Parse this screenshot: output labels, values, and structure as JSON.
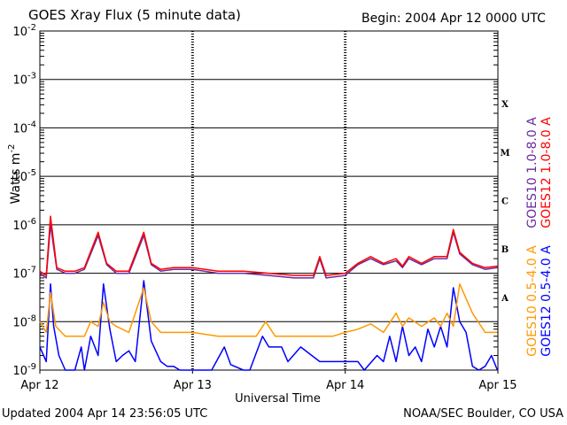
{
  "header": {
    "title": "GOES Xray Flux (5 minute data)",
    "begin": "Begin:  2004 Apr 12 0000 UTC"
  },
  "footer": {
    "updated": "Updated 2004 Apr 14 23:56:05 UTC",
    "source": "NOAA/SEC Boulder, CO USA"
  },
  "chart_data": {
    "type": "line",
    "title": "GOES Xray Flux (5 minute data)",
    "xlabel": "Universal Time",
    "ylabel": "Watts m-2",
    "ylabel_main": "Watts m",
    "ylabel_sup": "-2",
    "y_scale": "log",
    "ylim": [
      1e-09,
      0.01
    ],
    "xlim": [
      "2004-04-12 00:00",
      "2004-04-15 00:00"
    ],
    "x_tick_labels": [
      "Apr 12",
      "Apr 13",
      "Apr 14",
      "Apr 15"
    ],
    "y_tick_labels": [
      {
        "value": 1e-09,
        "base": "10",
        "exp": "-9"
      },
      {
        "value": 1e-08,
        "base": "10",
        "exp": "-8"
      },
      {
        "value": 1e-07,
        "base": "10",
        "exp": "-7"
      },
      {
        "value": 1e-06,
        "base": "10",
        "exp": "-6"
      },
      {
        "value": 1e-05,
        "base": "10",
        "exp": "-5"
      },
      {
        "value": 0.0001,
        "base": "10",
        "exp": "-4"
      },
      {
        "value": 0.001,
        "base": "10",
        "exp": "-3"
      },
      {
        "value": 0.01,
        "base": "10",
        "exp": "-2"
      }
    ],
    "flare_classes": [
      {
        "label": "X",
        "from": 0.0001,
        "to": 0.001
      },
      {
        "label": "M",
        "from": 1e-05,
        "to": 0.0001
      },
      {
        "label": "C",
        "from": 1e-06,
        "to": 1e-05
      },
      {
        "label": "B",
        "from": 1e-07,
        "to": 1e-06
      },
      {
        "label": "A",
        "from": 1e-08,
        "to": 1e-07
      }
    ],
    "grid": "horizontal lines at each decade from 1e-8 to 1e-3; dashed day separators",
    "series": [
      {
        "name": "GOES12 0.5-4.0 A",
        "color": "#0000ff",
        "x": [
          "2004-04-12 00:00",
          "2004-04-12 01:00",
          "2004-04-12 01:40",
          "2004-04-12 02:10",
          "2004-04-12 03:00",
          "2004-04-12 04:00",
          "2004-04-12 05:30",
          "2004-04-12 06:30",
          "2004-04-12 07:00",
          "2004-04-12 08:00",
          "2004-04-12 09:10",
          "2004-04-12 10:00",
          "2004-04-12 11:00",
          "2004-04-12 12:00",
          "2004-04-12 13:00",
          "2004-04-12 14:00",
          "2004-04-12 15:00",
          "2004-04-12 16:20",
          "2004-04-12 17:30",
          "2004-04-12 19:00",
          "2004-04-12 20:00",
          "2004-04-12 21:00",
          "2004-04-12 22:00",
          "2004-04-13 00:00",
          "2004-04-13 03:00",
          "2004-04-13 05:00",
          "2004-04-13 06:00",
          "2004-04-13 08:00",
          "2004-04-13 09:00",
          "2004-04-13 11:00",
          "2004-04-13 12:00",
          "2004-04-13 14:00",
          "2004-04-13 15:00",
          "2004-04-13 17:00",
          "2004-04-13 20:00",
          "2004-04-13 22:00",
          "2004-04-14 00:00",
          "2004-04-14 01:00",
          "2004-04-14 02:00",
          "2004-04-14 03:00",
          "2004-04-14 05:00",
          "2004-04-14 06:00",
          "2004-04-14 07:00",
          "2004-04-14 08:00",
          "2004-04-14 09:00",
          "2004-04-14 10:00",
          "2004-04-14 11:00",
          "2004-04-14 12:00",
          "2004-04-14 13:00",
          "2004-04-14 14:00",
          "2004-04-14 15:00",
          "2004-04-14 16:00",
          "2004-04-14 17:00",
          "2004-04-14 18:00",
          "2004-04-14 19:00",
          "2004-04-14 20:00",
          "2004-04-14 21:00",
          "2004-04-14 22:00",
          "2004-04-14 23:00",
          "2004-04-14 23:55"
        ],
        "values": [
          3e-09,
          1.5e-09,
          6e-08,
          8e-09,
          2e-09,
          1e-09,
          1e-09,
          3e-09,
          1e-09,
          5e-09,
          2e-09,
          6e-08,
          7e-09,
          1.5e-09,
          2e-09,
          2.5e-09,
          1.5e-09,
          7e-08,
          4e-09,
          1.5e-09,
          1.2e-09,
          1.2e-09,
          1e-09,
          1e-09,
          1e-09,
          3e-09,
          1.3e-09,
          1e-09,
          1e-09,
          5e-09,
          3e-09,
          3e-09,
          1.5e-09,
          3e-09,
          1.5e-09,
          1.5e-09,
          1.5e-09,
          1.5e-09,
          1.5e-09,
          1e-09,
          2e-09,
          1.5e-09,
          5e-09,
          1.5e-09,
          8e-09,
          2e-09,
          3e-09,
          1.5e-09,
          7e-09,
          3e-09,
          8e-09,
          3e-09,
          5e-08,
          1e-08,
          6e-09,
          1.2e-09,
          1e-09,
          1.2e-09,
          2e-09,
          1e-09
        ]
      },
      {
        "name": "GOES10 0.5-4.0 A",
        "color": "#ff9900",
        "x": [
          "2004-04-12 00:00",
          "2004-04-12 01:00",
          "2004-04-12 01:40",
          "2004-04-12 02:30",
          "2004-04-12 04:00",
          "2004-04-12 05:30",
          "2004-04-12 06:30",
          "2004-04-12 07:00",
          "2004-04-12 08:00",
          "2004-04-12 09:10",
          "2004-04-12 10:00",
          "2004-04-12 11:00",
          "2004-04-12 12:00",
          "2004-04-12 14:00",
          "2004-04-12 16:20",
          "2004-04-12 17:30",
          "2004-04-12 19:00",
          "2004-04-12 21:00",
          "2004-04-12 23:00",
          "2004-04-13 00:00",
          "2004-04-13 04:00",
          "2004-04-13 06:00",
          "2004-04-13 08:00",
          "2004-04-13 10:00",
          "2004-04-13 11:30",
          "2004-04-13 13:00",
          "2004-04-13 16:00",
          "2004-04-13 18:00",
          "2004-04-13 20:00",
          "2004-04-13 22:00",
          "2004-04-14 00:00",
          "2004-04-14 02:00",
          "2004-04-14 04:00",
          "2004-04-14 06:00",
          "2004-04-14 08:00",
          "2004-04-14 09:00",
          "2004-04-14 10:00",
          "2004-04-14 12:00",
          "2004-04-14 14:00",
          "2004-04-14 15:00",
          "2004-04-14 16:00",
          "2004-04-14 17:00",
          "2004-04-14 18:00",
          "2004-04-14 20:00",
          "2004-04-14 22:00",
          "2004-04-14 23:55"
        ],
        "values": [
          1e-08,
          6e-09,
          4e-08,
          8e-09,
          5e-09,
          5e-09,
          5e-09,
          5e-09,
          1e-08,
          8e-09,
          2.5e-08,
          1e-08,
          8e-09,
          6e-09,
          5e-08,
          1e-08,
          6e-09,
          6e-09,
          6e-09,
          6e-09,
          5e-09,
          5e-09,
          5e-09,
          5e-09,
          1e-08,
          5e-09,
          5e-09,
          5e-09,
          5e-09,
          5e-09,
          6e-09,
          7e-09,
          9e-09,
          6e-09,
          1.5e-08,
          8e-09,
          1.2e-08,
          8e-09,
          1.2e-08,
          8e-09,
          1.5e-08,
          8e-09,
          6e-08,
          1.5e-08,
          6e-09,
          6e-09
        ]
      },
      {
        "name": "GOES10 1.0-8.0 A",
        "color": "#6a2aa0",
        "x": [
          "2004-04-12 00:00",
          "2004-04-12 01:00",
          "2004-04-12 01:40",
          "2004-04-12 02:40",
          "2004-04-12 04:00",
          "2004-04-12 05:30",
          "2004-04-12 07:00",
          "2004-04-12 09:10",
          "2004-04-12 10:30",
          "2004-04-12 12:00",
          "2004-04-12 14:00",
          "2004-04-12 16:20",
          "2004-04-12 17:30",
          "2004-04-12 19:00",
          "2004-04-12 21:00",
          "2004-04-13 00:00",
          "2004-04-13 04:00",
          "2004-04-13 08:00",
          "2004-04-13 12:00",
          "2004-04-13 16:00",
          "2004-04-13 19:00",
          "2004-04-13 20:00",
          "2004-04-13 21:00",
          "2004-04-14 00:00",
          "2004-04-14 02:00",
          "2004-04-14 04:00",
          "2004-04-14 06:00",
          "2004-04-14 08:00",
          "2004-04-14 09:00",
          "2004-04-14 10:00",
          "2004-04-14 12:00",
          "2004-04-14 14:00",
          "2004-04-14 16:00",
          "2004-04-14 17:00",
          "2004-04-14 18:00",
          "2004-04-14 20:00",
          "2004-04-14 22:00",
          "2004-04-14 23:55"
        ],
        "values": [
          1e-07,
          8e-08,
          1e-06,
          1.2e-07,
          1e-07,
          1e-07,
          1.2e-07,
          6e-07,
          1.5e-07,
          1e-07,
          1e-07,
          6e-07,
          1.5e-07,
          1.1e-07,
          1.2e-07,
          1.2e-07,
          1e-07,
          1e-07,
          9e-08,
          8e-08,
          8e-08,
          2e-07,
          8e-08,
          9e-08,
          1.5e-07,
          2e-07,
          1.5e-07,
          1.8e-07,
          1.3e-07,
          2e-07,
          1.5e-07,
          2e-07,
          2e-07,
          7e-07,
          2.5e-07,
          1.5e-07,
          1.2e-07,
          1.3e-07
        ]
      },
      {
        "name": "GOES12 1.0-8.0 A",
        "color": "#ff0000",
        "x": [
          "2004-04-12 00:00",
          "2004-04-12 01:00",
          "2004-04-12 01:40",
          "2004-04-12 02:40",
          "2004-04-12 04:00",
          "2004-04-12 05:30",
          "2004-04-12 07:00",
          "2004-04-12 09:10",
          "2004-04-12 10:30",
          "2004-04-12 12:00",
          "2004-04-12 14:00",
          "2004-04-12 16:20",
          "2004-04-12 17:30",
          "2004-04-12 19:00",
          "2004-04-12 21:00",
          "2004-04-13 00:00",
          "2004-04-13 04:00",
          "2004-04-13 08:00",
          "2004-04-13 12:00",
          "2004-04-13 16:00",
          "2004-04-13 19:00",
          "2004-04-13 20:00",
          "2004-04-13 21:00",
          "2004-04-14 00:00",
          "2004-04-14 02:00",
          "2004-04-14 04:00",
          "2004-04-14 06:00",
          "2004-04-14 08:00",
          "2004-04-14 09:00",
          "2004-04-14 10:00",
          "2004-04-14 12:00",
          "2004-04-14 14:00",
          "2004-04-14 16:00",
          "2004-04-14 17:00",
          "2004-04-14 18:00",
          "2004-04-14 20:00",
          "2004-04-14 22:00",
          "2004-04-14 23:55"
        ],
        "values": [
          1.1e-07,
          9e-08,
          1.5e-06,
          1.3e-07,
          1.1e-07,
          1.1e-07,
          1.3e-07,
          7e-07,
          1.6e-07,
          1.1e-07,
          1.1e-07,
          7e-07,
          1.6e-07,
          1.2e-07,
          1.3e-07,
          1.3e-07,
          1.1e-07,
          1.1e-07,
          1e-07,
          9e-08,
          9e-08,
          2.2e-07,
          9e-08,
          1e-07,
          1.6e-07,
          2.2e-07,
          1.6e-07,
          2e-07,
          1.4e-07,
          2.2e-07,
          1.6e-07,
          2.2e-07,
          2.2e-07,
          8e-07,
          2.7e-07,
          1.6e-07,
          1.3e-07,
          1.4e-07
        ]
      }
    ]
  }
}
